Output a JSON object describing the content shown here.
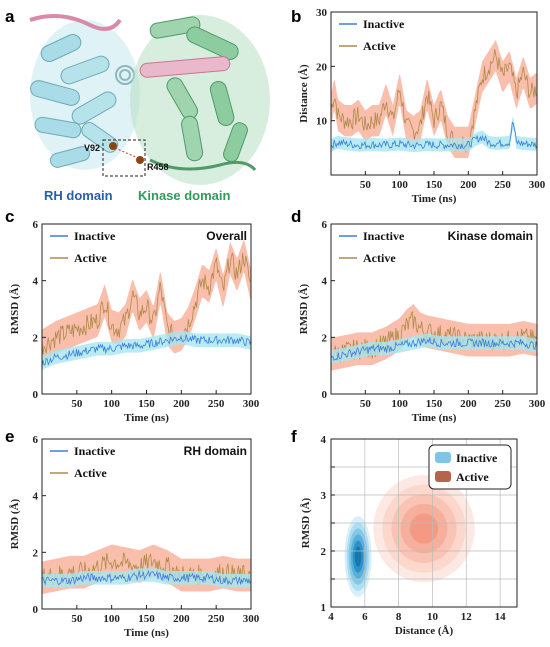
{
  "panel_letters": [
    "a",
    "b",
    "c",
    "d",
    "e",
    "f"
  ],
  "structure": {
    "residue_1": "V92",
    "residue_2": "R458",
    "rh_label": "RH domain",
    "kinase_label": "Kinase domain",
    "rh_color": "#2a5db0",
    "kinase_color": "#2f9b59"
  },
  "colors": {
    "inactive": "#3b7fd8",
    "inactive_band": "#a8e6f0",
    "active": "#b08a4a",
    "active_band": "#f7a890"
  },
  "chart_data": [
    {
      "id": "b",
      "type": "line",
      "xlabel": "Time (ns)",
      "ylabel": "Distance (Å)",
      "xlim": [
        0,
        300
      ],
      "ylim": [
        0,
        30
      ],
      "xticks": [
        50,
        100,
        150,
        200,
        250,
        300
      ],
      "yticks": [
        10,
        20,
        30
      ],
      "legend": "top-left",
      "series": [
        {
          "name": "Inactive",
          "x": [
            0,
            10,
            20,
            40,
            60,
            80,
            100,
            120,
            140,
            160,
            180,
            200,
            210,
            220,
            230,
            240,
            260,
            265,
            270,
            280,
            300
          ],
          "y": [
            5.5,
            6,
            5.8,
            5.5,
            5.6,
            5.5,
            5.7,
            5.4,
            5.6,
            5.5,
            5.6,
            5.5,
            6.5,
            7,
            6,
            5.8,
            6,
            10,
            6,
            5.8,
            5.6
          ]
        },
        {
          "name": "Active",
          "x": [
            0,
            5,
            10,
            20,
            30,
            40,
            50,
            60,
            70,
            80,
            90,
            100,
            110,
            120,
            130,
            140,
            150,
            160,
            170,
            180,
            190,
            200,
            210,
            220,
            230,
            240,
            250,
            260,
            270,
            280,
            290,
            300
          ],
          "y": [
            12,
            15,
            11,
            10,
            10,
            11,
            9,
            10,
            10,
            14,
            10,
            16,
            9,
            8,
            9,
            15,
            10,
            13,
            8,
            6,
            6,
            6,
            12,
            18,
            20,
            22,
            18,
            20,
            15,
            19,
            15,
            16
          ]
        }
      ]
    },
    {
      "id": "c",
      "type": "line",
      "title": "Overall",
      "xlabel": "Time (ns)",
      "ylabel": "RMSD (Å)",
      "xlim": [
        0,
        300
      ],
      "ylim": [
        0,
        6
      ],
      "xticks": [
        50,
        100,
        150,
        200,
        250,
        300
      ],
      "yticks": [
        0,
        2,
        4,
        6
      ],
      "legend": "top-left",
      "series": [
        {
          "name": "Inactive",
          "x": [
            0,
            20,
            40,
            60,
            80,
            100,
            120,
            140,
            160,
            180,
            200,
            220,
            240,
            260,
            280,
            300
          ],
          "y": [
            1.1,
            1.3,
            1.4,
            1.5,
            1.6,
            1.6,
            1.7,
            1.7,
            1.8,
            1.9,
            2.0,
            1.9,
            1.9,
            1.9,
            1.9,
            1.8
          ]
        },
        {
          "name": "Active",
          "x": [
            0,
            20,
            40,
            60,
            80,
            90,
            100,
            110,
            120,
            130,
            140,
            150,
            160,
            170,
            180,
            190,
            200,
            210,
            220,
            230,
            240,
            250,
            260,
            270,
            280,
            290,
            300
          ],
          "y": [
            1.7,
            2.0,
            2.2,
            2.4,
            2.6,
            3.3,
            2.4,
            2.3,
            2.6,
            3.5,
            2.8,
            3.1,
            2.5,
            3.8,
            2.3,
            2.0,
            2.1,
            2.5,
            3.2,
            4.0,
            3.8,
            4.6,
            3.6,
            4.8,
            4.2,
            4.9,
            3.8
          ]
        }
      ]
    },
    {
      "id": "d",
      "type": "line",
      "title": "Kinase domain",
      "xlabel": "Time (ns)",
      "ylabel": "RMSD (Å)",
      "xlim": [
        0,
        300
      ],
      "ylim": [
        0,
        6
      ],
      "xticks": [
        50,
        100,
        150,
        200,
        250,
        300
      ],
      "yticks": [
        0,
        2,
        4,
        6
      ],
      "legend": "top-left",
      "series": [
        {
          "name": "Inactive",
          "x": [
            0,
            20,
            40,
            60,
            80,
            100,
            120,
            140,
            160,
            180,
            200,
            220,
            240,
            260,
            280,
            300
          ],
          "y": [
            1.3,
            1.4,
            1.5,
            1.6,
            1.6,
            1.7,
            1.8,
            1.9,
            1.8,
            1.8,
            1.8,
            1.8,
            1.8,
            1.8,
            1.8,
            1.7
          ]
        },
        {
          "name": "Active",
          "x": [
            0,
            20,
            40,
            60,
            80,
            100,
            110,
            120,
            130,
            140,
            160,
            180,
            200,
            220,
            240,
            260,
            280,
            300
          ],
          "y": [
            1.4,
            1.5,
            1.6,
            1.6,
            1.8,
            2.1,
            2.4,
            2.6,
            2.3,
            2.2,
            2.1,
            2.0,
            1.9,
            1.9,
            1.9,
            1.9,
            2.0,
            1.9
          ]
        }
      ]
    },
    {
      "id": "e",
      "type": "line",
      "title": "RH domain",
      "xlabel": "Time (ns)",
      "ylabel": "RMSD (Å)",
      "xlim": [
        0,
        300
      ],
      "ylim": [
        0,
        6
      ],
      "xticks": [
        50,
        100,
        150,
        200,
        250,
        300
      ],
      "yticks": [
        0,
        2,
        4,
        6
      ],
      "legend": "top-left",
      "series": [
        {
          "name": "Inactive",
          "x": [
            0,
            20,
            40,
            60,
            80,
            100,
            120,
            140,
            160,
            180,
            200,
            220,
            240,
            260,
            280,
            300
          ],
          "y": [
            1.0,
            1.0,
            1.0,
            1.1,
            1.1,
            1.1,
            1.1,
            1.2,
            1.2,
            1.1,
            1.1,
            1.1,
            1.1,
            1.0,
            1.0,
            1.0
          ]
        },
        {
          "name": "Active",
          "x": [
            0,
            20,
            40,
            60,
            80,
            100,
            120,
            140,
            160,
            180,
            200,
            220,
            240,
            260,
            280,
            300
          ],
          "y": [
            1.1,
            1.2,
            1.3,
            1.3,
            1.5,
            1.7,
            1.6,
            1.5,
            1.7,
            1.5,
            1.2,
            1.2,
            1.2,
            1.3,
            1.2,
            1.2
          ]
        }
      ]
    },
    {
      "id": "f",
      "type": "heatmap",
      "xlabel": "Distance (Å)",
      "ylabel": "RMSD (Å)",
      "xlim": [
        4,
        15
      ],
      "ylim": [
        1,
        4
      ],
      "xticks": [
        4,
        6,
        8,
        10,
        12,
        14
      ],
      "yticks": [
        1,
        1.5,
        2,
        2.5,
        3,
        3.5,
        4
      ],
      "ytick_labels": [
        "1",
        "",
        "2",
        "",
        "3",
        "",
        "4"
      ],
      "grid": true,
      "legend": "top-right",
      "series": [
        {
          "name": "Inactive",
          "center_x": 5.6,
          "center_y": 1.9,
          "spread_x": 0.5,
          "spread_y": 0.3
        },
        {
          "name": "Active",
          "center_x": 9.5,
          "center_y": 2.4,
          "spread_x": 3.0,
          "spread_y": 0.6
        }
      ]
    }
  ]
}
